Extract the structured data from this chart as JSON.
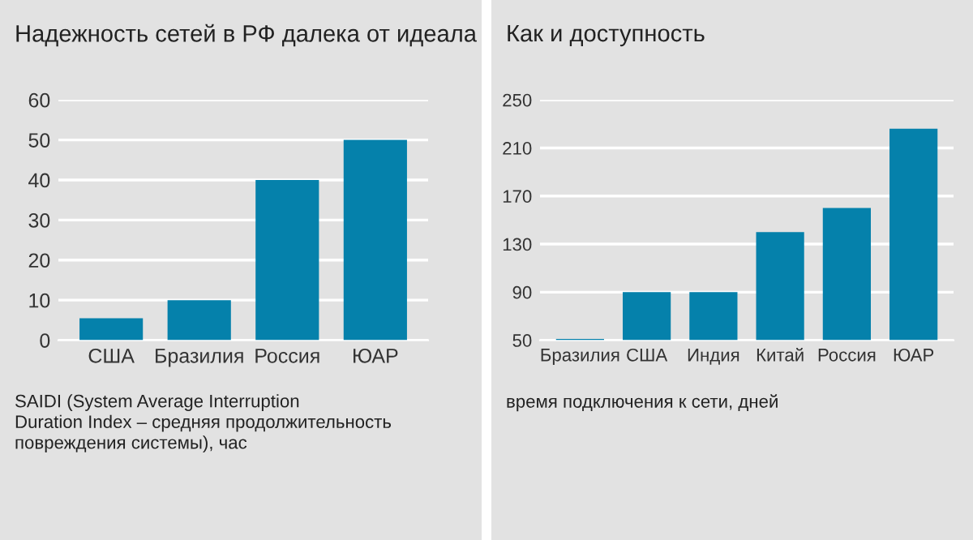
{
  "chart_data": [
    {
      "type": "bar",
      "title": "Надежность сетей в РФ далека от идеала",
      "categories": [
        "США",
        "Бразилия",
        "Россия",
        "ЮАР"
      ],
      "values": [
        5.5,
        10,
        40,
        50
      ],
      "color": "#0581ab",
      "ylim": [
        0,
        60
      ],
      "yticks": [
        0,
        10,
        20,
        30,
        40,
        50,
        60
      ],
      "grid": "y",
      "annotations": [
        "SAIDI (System Average Interruption\nDuration Index – средняя продолжительность\nповреждения системы), час"
      ]
    },
    {
      "type": "bar",
      "title": "Как и доступность",
      "categories": [
        "Бразилия",
        "США",
        "Индия",
        "Китай",
        "Россия",
        "ЮАР"
      ],
      "values": [
        51,
        90,
        90,
        140,
        160,
        226
      ],
      "color": "#0581ab",
      "ylim": [
        50,
        250
      ],
      "yticks": [
        50,
        90,
        130,
        170,
        210,
        250
      ],
      "grid": "y",
      "annotations": [
        "время подключения к сети, дней"
      ]
    }
  ]
}
